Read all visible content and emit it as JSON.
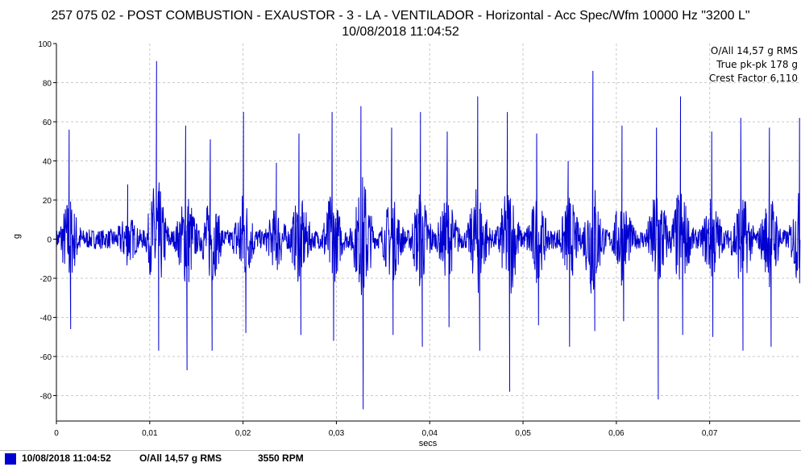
{
  "header": {
    "title": "257 075 02 - POST COMBUSTION - EXAUSTOR - 3 - LA - VENTILADOR - Horizontal - Acc Spec/Wfm 10000 Hz \"3200 L\"",
    "timestamp": "10/08/2018 11:04:52"
  },
  "colors": {
    "trace": "#0000d0",
    "grid": "#c8c8c8",
    "axis": "#000000"
  },
  "chart_data": {
    "type": "line",
    "xlabel": "secs",
    "ylabel": "g",
    "xlim": [
      0,
      0.0797
    ],
    "ylim": [
      -93,
      100
    ],
    "grid": true,
    "x_ticks": [
      0,
      0.01,
      0.02,
      0.03,
      0.04,
      0.05,
      0.06,
      0.07
    ],
    "x_tick_labels": [
      "0",
      "0,01",
      "0,02",
      "0,03",
      "0,04",
      "0,05",
      "0,06",
      "0,07"
    ],
    "y_ticks": [
      -80,
      -60,
      -40,
      -20,
      0,
      20,
      40,
      60,
      80,
      100
    ],
    "y_tick_labels": [
      "-80",
      "-60",
      "-40",
      "-20",
      "0",
      "20",
      "40",
      "60",
      "80",
      "100"
    ],
    "annotations": [
      "O/All 14,57 g RMS",
      "True pk-pk 178 g",
      "Crest Factor 6,110"
    ],
    "series": [
      {
        "x": [
          0.00136,
          0.00153,
          0.00764,
          0.01073,
          0.01096,
          0.01385,
          0.014,
          0.01649,
          0.01668,
          0.02005,
          0.0203,
          0.02357,
          0.02599,
          0.0262,
          0.02954,
          0.0297,
          0.03263,
          0.03287,
          0.03592,
          0.03608,
          0.03901,
          0.03921,
          0.04188,
          0.04207,
          0.04514,
          0.04536,
          0.04832,
          0.04857,
          0.05146,
          0.05166,
          0.05484,
          0.05499,
          0.05749,
          0.05769,
          0.06061,
          0.06078,
          0.0643,
          0.06449,
          0.06688,
          0.06711,
          0.07022,
          0.07034,
          0.07334,
          0.07357,
          0.0764,
          0.07658,
          0.07963
        ],
        "y": [
          56,
          -46,
          28,
          91,
          -57,
          58,
          -67,
          51,
          -57,
          65,
          -48,
          39,
          54,
          -49,
          65,
          -52,
          68,
          -87,
          57,
          -49,
          65,
          -55,
          55,
          -45,
          73,
          -57,
          65,
          -78,
          54,
          -44,
          40,
          -55,
          86,
          -47,
          58,
          -42,
          57,
          -82,
          73,
          -49,
          55,
          -50,
          62,
          -57,
          57,
          -55,
          62
        ]
      }
    ]
  },
  "status_bar": {
    "timestamp": "10/08/2018 11:04:52",
    "overall": "O/All 14,57 g RMS",
    "speed": "3550 RPM"
  }
}
